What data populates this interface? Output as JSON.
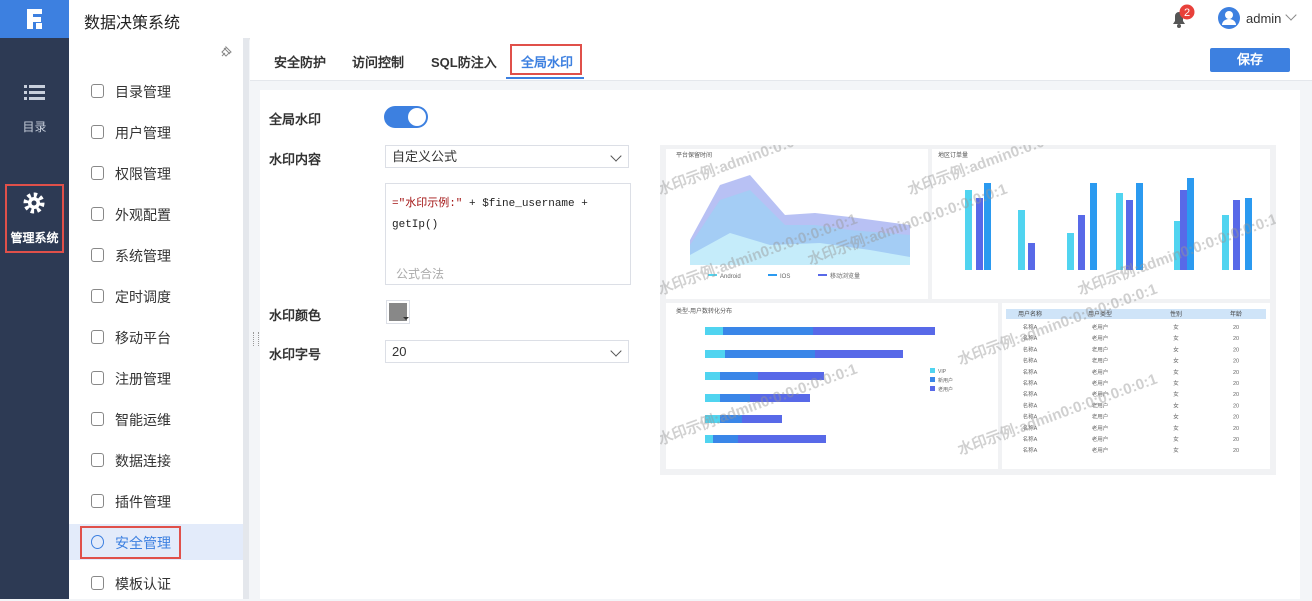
{
  "header": {
    "title": "数据决策系统",
    "notification_count": 2,
    "user": "admin"
  },
  "nav": [
    {
      "label": "目录"
    },
    {
      "label": "管理系统"
    }
  ],
  "menu": [
    "目录管理",
    "用户管理",
    "权限管理",
    "外观配置",
    "系统管理",
    "定时调度",
    "移动平台",
    "注册管理",
    "智能运维",
    "数据连接",
    "插件管理",
    "安全管理",
    "模板认证"
  ],
  "tabs": [
    "安全防护",
    "访问控制",
    "SQL防注入",
    "全局水印"
  ],
  "save_button": "保存",
  "form": {
    "watermark_label": "全局水印",
    "content_label": "水印内容",
    "content_select": "自定义公式",
    "formula": {
      "string": "=\"水印示例:\"",
      "rest": " + $fine_username +",
      "line2": "getIp()"
    },
    "formula_status": "公式合法",
    "color_label": "水印颜色",
    "size_label": "水印字号",
    "size_select": "20"
  },
  "preview": {
    "watermark": "水印示例:admin0:0:0:0:0:0:0:1",
    "titles": [
      "平台保留时间",
      "地区订单量",
      "类型-用户数转化分布"
    ],
    "area_legend": [
      "Android",
      "IOS",
      "移动浏览量"
    ],
    "bar_legend": [
      "VIP",
      "新用户",
      "老用户"
    ],
    "table": {
      "header": [
        "用户名称",
        "用户类型",
        "性别",
        "年龄"
      ],
      "rows": [
        [
          "名称A",
          "老用户",
          "女",
          "20"
        ],
        [
          "名称A",
          "老用户",
          "女",
          "20"
        ],
        [
          "名称A",
          "老用户",
          "女",
          "20"
        ],
        [
          "名称A",
          "老用户",
          "女",
          "20"
        ],
        [
          "名称A",
          "老用户",
          "女",
          "20"
        ],
        [
          "名称A",
          "老用户",
          "女",
          "20"
        ],
        [
          "名称A",
          "老用户",
          "女",
          "20"
        ],
        [
          "名称A",
          "老用户",
          "女",
          "20"
        ],
        [
          "名称A",
          "老用户",
          "女",
          "20"
        ],
        [
          "名称A",
          "老用户",
          "女",
          "20"
        ],
        [
          "名称A",
          "老用户",
          "女",
          "20"
        ],
        [
          "名称A",
          "老用户",
          "女",
          "20"
        ]
      ]
    }
  }
}
